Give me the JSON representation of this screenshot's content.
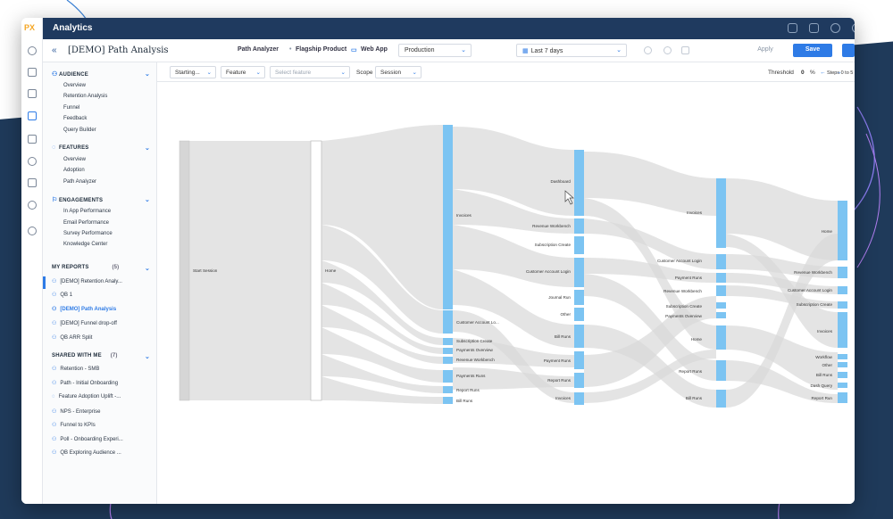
{
  "topbar": {
    "title": "Analytics",
    "logo": "PX"
  },
  "header": {
    "page_title": "[DEMO] Path Analysis",
    "breadcrumb_1": "Path Analyzer",
    "breadcrumb_2": "Flagship Product",
    "breadcrumb_3": "Web App",
    "environment": "Production",
    "date_range": "Last 7 days",
    "apply_label": "Apply",
    "save_label": "Save"
  },
  "sidebar": {
    "audience": {
      "title": "AUDIENCE",
      "items": [
        "Overview",
        "Retention Analysis",
        "Funnel",
        "Feedback",
        "Query Builder"
      ]
    },
    "features": {
      "title": "FEATURES",
      "items": [
        "Overview",
        "Adoption",
        "Path Analyzer"
      ]
    },
    "engagements": {
      "title": "ENGAGEMENTS",
      "items": [
        "In App Performance",
        "Email Performance",
        "Survey Performance",
        "Knowledge Center"
      ]
    },
    "my_reports": {
      "title": "MY REPORTS",
      "count": "(5)",
      "items": [
        "[DEMO] Retention Analy...",
        "QB 1",
        "[DEMO] Path Analysis",
        "[DEMO] Funnel drop-off",
        "QB ARR Split"
      ]
    },
    "shared": {
      "title": "SHARED WITH ME",
      "count": "(7)",
      "items": [
        "Retention - SMB",
        "Path - Initial Onboarding",
        "Feature Adoption Uplift -...",
        "NPS - Enterprise",
        "Funnel to KPIs",
        "Poll - Onboarding Experi...",
        "QB Exploring Audience ..."
      ]
    }
  },
  "filters": {
    "starting": "Starting...",
    "type": "Feature",
    "feature_placeholder": "Select feature",
    "scope_label": "Scope",
    "scope": "Session",
    "threshold_label": "Threshold",
    "threshold_value": "0",
    "threshold_unit": "%",
    "steps": "Steps 0 to 5"
  },
  "sankey": {
    "col0": [
      "Start Session"
    ],
    "col1": [
      "Home"
    ],
    "col2": [
      "Invoices",
      "Customer Account Lo...",
      "Subscription Create",
      "Payments Overview",
      "Revenue Workbench",
      "Payments Runs",
      "Report Runs",
      "Bill Runs"
    ],
    "col3": [
      "Dashboard",
      "Revenue Workbench",
      "Subscription Create",
      "Customer Account Login",
      "Journal Run",
      "Other",
      "Bill Runs",
      "Payment Runs",
      "Report Runs",
      "Invoices"
    ],
    "col4": [
      "Invoices",
      "Customer Account Login",
      "Payment Runs",
      "Revenue Workbench",
      "Subscription Create",
      "Payments Overview",
      "Home",
      "Report Runs",
      "Bill Runs"
    ],
    "col5": [
      "Home",
      "Revenue Workbench",
      "Customer Account Login",
      "Subscription Create",
      "Invoices",
      "Workflow",
      "Other",
      "Bill Runs",
      "Dash Query",
      "Report Run"
    ]
  },
  "colors": {
    "brand": "#1f3a5f",
    "accent": "#2e7be6",
    "node": "#7cc4f2",
    "flow": "#d9d9d9"
  },
  "icons": [
    "back-icon",
    "chevron-down-icon",
    "calendar-icon",
    "filter-icon",
    "share-icon",
    "info-icon",
    "delete-icon",
    "chat-icon",
    "save-icon",
    "settings-icon",
    "help-icon"
  ]
}
